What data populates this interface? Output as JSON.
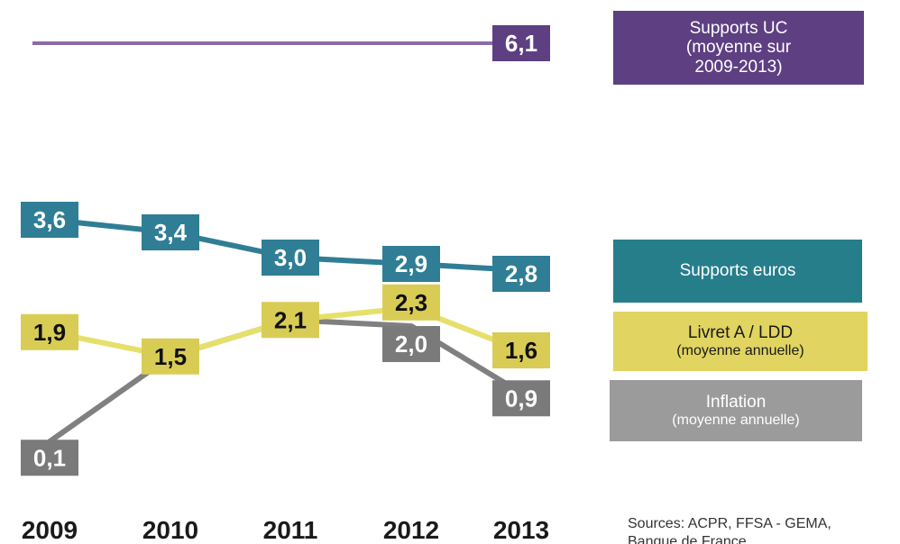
{
  "chart_data": {
    "type": "line",
    "x": [
      "2009",
      "2010",
      "2011",
      "2012",
      "2013"
    ],
    "series": [
      {
        "key": "uc",
        "values": [
          null,
          null,
          null,
          null,
          6.1
        ],
        "labels": [
          "",
          "",
          "",
          "",
          "6,1"
        ],
        "color": "#5e3f82",
        "line_color": "#8b6aab",
        "label_text_color": "#ffffff"
      },
      {
        "key": "euros",
        "values": [
          3.6,
          3.4,
          3.0,
          2.9,
          2.8
        ],
        "labels": [
          "3,6",
          "3,4",
          "3,0",
          "2,9",
          "2,8"
        ],
        "color": "#2f7e95",
        "line_color": "#2f7e95",
        "label_text_color": "#ffffff"
      },
      {
        "key": "livret",
        "values": [
          1.9,
          1.5,
          2.1,
          2.3,
          1.6
        ],
        "labels": [
          "1,9",
          "1,5",
          "2,1",
          "2,3",
          "1,6"
        ],
        "color": "#d9cc55",
        "line_color": "#e6e06a",
        "label_text_color": "#111111"
      },
      {
        "key": "inflation",
        "values": [
          0.1,
          1.5,
          2.1,
          2.0,
          0.9
        ],
        "labels": [
          "0,1",
          "",
          "",
          "2,0",
          "0,9"
        ],
        "color": "#7a7a7a",
        "line_color": "#808080",
        "label_text_color": "#ffffff"
      }
    ]
  },
  "legend": {
    "uc": {
      "line1": "Supports UC",
      "line2": "(moyenne sur",
      "line3": "2009-2013)"
    },
    "euros": {
      "line1": "Supports euros"
    },
    "livret": {
      "line1": "Livret A / LDD",
      "line2": "(moyenne annuelle)"
    },
    "inflation": {
      "line1": "Inflation",
      "line2": "(moyenne annuelle)"
    }
  },
  "sources": {
    "line1": "Sources: ACPR, FFSA - GEMA,",
    "line2": "Banque de France"
  }
}
